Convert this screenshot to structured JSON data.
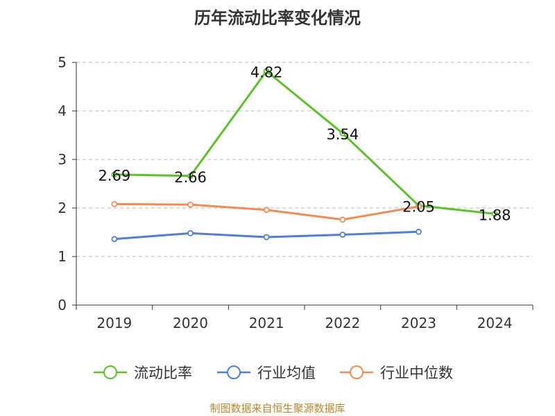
{
  "footer": "制图数据来自恒生聚源数据库",
  "chart_data": {
    "type": "line",
    "title": "历年流动比率变化情况",
    "xlabel": "",
    "ylabel": "",
    "categories": [
      "2019",
      "2020",
      "2021",
      "2022",
      "2023",
      "2024"
    ],
    "ylim": [
      0,
      5
    ],
    "yticks": [
      "0",
      "1",
      "2",
      "3",
      "4",
      "5"
    ],
    "grid": "horizontal dashed",
    "legend_position": "bottom",
    "series": [
      {
        "name": "流动比率",
        "color": "#5bc229",
        "values": [
          2.69,
          2.66,
          4.82,
          3.54,
          2.05,
          1.88
        ],
        "labels": [
          "2.69",
          "2.66",
          "4.82",
          "3.54",
          "2.05",
          "1.88"
        ]
      },
      {
        "name": "行业均值",
        "color": "#4f7fd8",
        "values": [
          1.36,
          1.48,
          1.4,
          1.45,
          1.51,
          null
        ]
      },
      {
        "name": "行业中位数",
        "color": "#f28c57",
        "values": [
          2.08,
          2.07,
          1.96,
          1.76,
          2.03,
          null
        ]
      }
    ]
  }
}
